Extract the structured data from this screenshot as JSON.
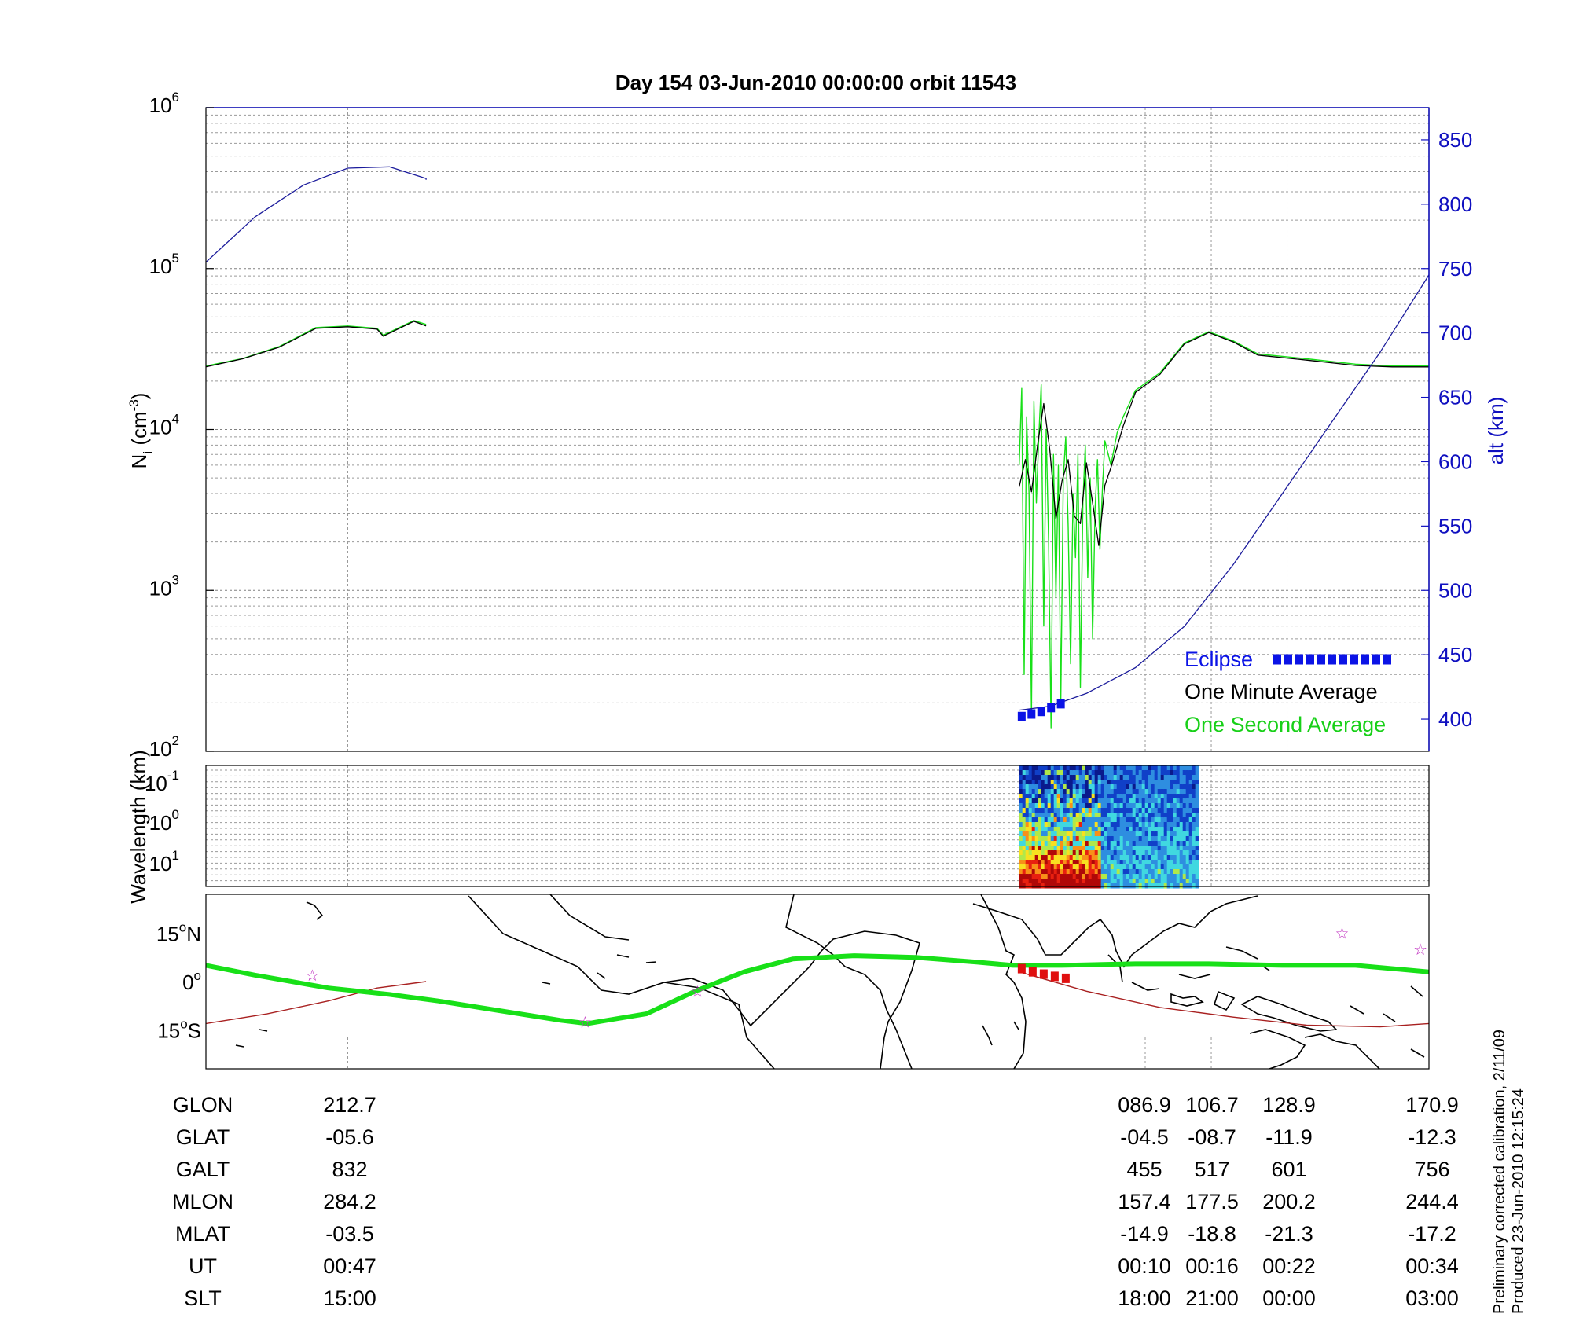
{
  "figure": {
    "title": "Day 154  03-Jun-2010 00:00:00   orbit 11543",
    "footnote_1": "Preliminary corrected calibration, 2/11/09",
    "footnote_2": "Produced 23-Jun-2010 12:15:24"
  },
  "chart_data": [
    {
      "id": "density",
      "type": "line",
      "title": "",
      "ylabel_main": "N",
      "ylabel_sub": "i",
      "ylabel_units_pre": " (cm",
      "ylabel_units_sup": "-3",
      "ylabel_units_post": ")",
      "y_scale": "log",
      "ylim": [
        100,
        1000000
      ],
      "y_ticks": [
        {
          "base": "10",
          "exp": "2",
          "value": 100
        },
        {
          "base": "10",
          "exp": "3",
          "value": 1000
        },
        {
          "base": "10",
          "exp": "4",
          "value": 10000
        },
        {
          "base": "10",
          "exp": "5",
          "value": 100000
        },
        {
          "base": "10",
          "exp": "6",
          "value": 1000000
        }
      ],
      "y2label": "alt (km)",
      "y2lim": [
        375,
        875
      ],
      "y2_ticks": [
        "400",
        "450",
        "500",
        "550",
        "600",
        "650",
        "700",
        "750",
        "800",
        "850"
      ],
      "xlim": [
        0,
        1
      ],
      "x_grid": [
        0.116,
        0.768,
        0.822,
        0.884,
        1.0
      ],
      "grid": true,
      "colors": {
        "altitude": "#1c1c9c",
        "minute": "#000000",
        "second": "#18e018",
        "eclipse": "#0b13e6",
        "axis_right": "#1010c0"
      },
      "series": [
        {
          "id": "altitude",
          "axis": "right",
          "segments": [
            [
              [
                0.0,
                755
              ],
              [
                0.04,
                790
              ],
              [
                0.08,
                815
              ],
              [
                0.116,
                828
              ],
              [
                0.15,
                829
              ],
              [
                0.18,
                820
              ],
              [
                0.18,
                819
              ]
            ],
            [
              [
                0.665,
                407
              ],
              [
                0.69,
                410
              ],
              [
                0.72,
                420
              ],
              [
                0.76,
                440
              ],
              [
                0.8,
                472
              ],
              [
                0.84,
                520
              ],
              [
                0.88,
                575
              ],
              [
                0.92,
                630
              ],
              [
                0.96,
                685
              ],
              [
                1.0,
                745
              ]
            ]
          ]
        },
        {
          "id": "minute_avg",
          "axis": "left",
          "segments": [
            [
              [
                0.0,
                24500
              ],
              [
                0.03,
                27500
              ],
              [
                0.06,
                32500
              ],
              [
                0.09,
                42500
              ],
              [
                0.116,
                43500
              ],
              [
                0.14,
                42000
              ],
              [
                0.145,
                38000
              ],
              [
                0.17,
                47000
              ],
              [
                0.18,
                44000
              ]
            ],
            [
              [
                0.665,
                4400
              ],
              [
                0.67,
                6500
              ],
              [
                0.675,
                4100
              ],
              [
                0.68,
                8000
              ],
              [
                0.685,
                14500
              ],
              [
                0.69,
                7500
              ],
              [
                0.695,
                2800
              ],
              [
                0.7,
                4800
              ],
              [
                0.705,
                6500
              ],
              [
                0.71,
                2900
              ],
              [
                0.715,
                2600
              ],
              [
                0.72,
                6200
              ],
              [
                0.725,
                3500
              ],
              [
                0.73,
                1900
              ],
              [
                0.735,
                4500
              ],
              [
                0.74,
                5800
              ],
              [
                0.75,
                10500
              ],
              [
                0.76,
                17000
              ],
              [
                0.78,
                22000
              ],
              [
                0.8,
                34000
              ],
              [
                0.82,
                40000
              ],
              [
                0.84,
                35000
              ],
              [
                0.86,
                29000
              ],
              [
                0.9,
                27000
              ],
              [
                0.94,
                25000
              ],
              [
                0.97,
                24500
              ],
              [
                1.0,
                24500
              ]
            ]
          ]
        },
        {
          "id": "second_avg",
          "axis": "left",
          "segments": [
            [
              [
                0.0,
                24800
              ],
              [
                0.03,
                27600
              ],
              [
                0.06,
                32800
              ],
              [
                0.09,
                43000
              ],
              [
                0.116,
                44000
              ],
              [
                0.14,
                42500
              ],
              [
                0.145,
                38500
              ],
              [
                0.17,
                47500
              ],
              [
                0.18,
                45000
              ]
            ],
            [
              [
                0.665,
                6000
              ],
              [
                0.667,
                18000
              ],
              [
                0.669,
                300
              ],
              [
                0.671,
                12000
              ],
              [
                0.673,
                4000
              ],
              [
                0.675,
                170
              ],
              [
                0.677,
                15000
              ],
              [
                0.679,
                3500
              ],
              [
                0.681,
                9000
              ],
              [
                0.683,
                19000
              ],
              [
                0.685,
                600
              ],
              [
                0.687,
                10000
              ],
              [
                0.689,
                2000
              ],
              [
                0.691,
                140
              ],
              [
                0.693,
                7000
              ],
              [
                0.695,
                900
              ],
              [
                0.697,
                6000
              ],
              [
                0.699,
                200
              ],
              [
                0.701,
                5000
              ],
              [
                0.703,
                9000
              ],
              [
                0.705,
                2500
              ],
              [
                0.707,
                350
              ],
              [
                0.709,
                4000
              ],
              [
                0.711,
                1600
              ],
              [
                0.713,
                7000
              ],
              [
                0.715,
                250
              ],
              [
                0.717,
                3500
              ],
              [
                0.719,
                8000
              ],
              [
                0.721,
                1200
              ],
              [
                0.723,
                5000
              ],
              [
                0.725,
                500
              ],
              [
                0.727,
                3200
              ],
              [
                0.729,
                6500
              ],
              [
                0.731,
                1800
              ],
              [
                0.733,
                4200
              ],
              [
                0.735,
                8500
              ],
              [
                0.74,
                6000
              ],
              [
                0.745,
                9500
              ],
              [
                0.75,
                12000
              ],
              [
                0.76,
                17500
              ],
              [
                0.78,
                22500
              ],
              [
                0.8,
                34500
              ],
              [
                0.82,
                40500
              ],
              [
                0.84,
                35500
              ],
              [
                0.86,
                29500
              ],
              [
                0.9,
                27500
              ],
              [
                0.94,
                25500
              ],
              [
                0.97,
                24800
              ],
              [
                1.0,
                24800
              ]
            ]
          ]
        },
        {
          "id": "eclipse",
          "axis": "right",
          "points": [
            [
              0.667,
              402
            ],
            [
              0.675,
              404
            ],
            [
              0.683,
              406
            ],
            [
              0.691,
              409
            ],
            [
              0.699,
              412
            ]
          ]
        }
      ],
      "legend": {
        "placement": "bottom-right",
        "entries": [
          {
            "label": "Eclipse",
            "color": "#0b13e6"
          },
          {
            "label": "One Minute Average",
            "color": "#000000"
          },
          {
            "label": "One Second Average",
            "color": "#18e018"
          }
        ]
      }
    },
    {
      "id": "spectrogram",
      "type": "heatmap",
      "ylabel": "Wavelength (km)",
      "y_ticks": [
        {
          "base": "10",
          "exp": "-1"
        },
        {
          "base": "10",
          "exp": "0"
        },
        {
          "base": "10",
          "exp": "1"
        }
      ],
      "x_range": [
        0.665,
        0.81
      ],
      "colorscale": [
        "#0a1a8c",
        "#1040c8",
        "#2e8ee0",
        "#40d8e0",
        "#b0e84a",
        "#f8e020",
        "#f89018",
        "#e82010",
        "#b00808"
      ]
    },
    {
      "id": "track_map",
      "type": "line",
      "y_ticks": [
        {
          "value": "15",
          "hemi": "N",
          "lat": 15
        },
        {
          "value": "0",
          "hemi": "",
          "lat": 0
        },
        {
          "value": "15",
          "hemi": "S",
          "lat": -15
        }
      ],
      "ylim": [
        -27,
        27
      ],
      "colors": {
        "track": "#18e018",
        "magnetic_equator": "#a82020",
        "eclipse": "#e01010",
        "star": "#c030c0"
      },
      "track": [
        [
          0.0,
          5
        ],
        [
          0.04,
          2
        ],
        [
          0.1,
          -2
        ],
        [
          0.15,
          -4
        ],
        [
          0.19,
          -6
        ],
        [
          0.24,
          -9
        ],
        [
          0.29,
          -12
        ],
        [
          0.312,
          -13
        ],
        [
          0.36,
          -10
        ],
        [
          0.4,
          -3
        ],
        [
          0.44,
          3
        ],
        [
          0.48,
          7
        ],
        [
          0.53,
          8
        ],
        [
          0.58,
          7.5
        ],
        [
          0.63,
          6
        ],
        [
          0.66,
          5
        ],
        [
          0.7,
          5
        ],
        [
          0.76,
          5.5
        ],
        [
          0.82,
          5.5
        ],
        [
          0.88,
          5
        ],
        [
          0.94,
          5
        ],
        [
          1.0,
          3
        ]
      ],
      "magnetic_equator": [
        [
          0.0,
          -13
        ],
        [
          0.05,
          -10
        ],
        [
          0.1,
          -6
        ],
        [
          0.14,
          -2
        ],
        [
          0.18,
          0
        ]
      ],
      "magnetic_equator_b": [
        [
          0.665,
          3
        ],
        [
          0.72,
          -3
        ],
        [
          0.78,
          -8
        ],
        [
          0.84,
          -11
        ],
        [
          0.9,
          -13.5
        ],
        [
          0.96,
          -14
        ],
        [
          1.0,
          -13
        ]
      ],
      "eclipse": [
        [
          0.667,
          4
        ],
        [
          0.676,
          3
        ],
        [
          0.685,
          2.3
        ],
        [
          0.694,
          1.6
        ],
        [
          0.703,
          1
        ]
      ],
      "stars": [
        [
          0.087,
          2
        ],
        [
          0.31,
          -12.5
        ],
        [
          0.402,
          -3
        ],
        [
          0.929,
          15
        ],
        [
          0.993,
          10
        ]
      ]
    }
  ],
  "table": {
    "row_labels": [
      "GLON",
      "GLAT",
      "GALT",
      "MLON",
      "MLAT",
      "UT",
      "SLT"
    ],
    "columns": [
      {
        "values": [
          "212.7",
          "-05.6",
          "832",
          "284.2",
          "-03.5",
          "00:47",
          "15:00"
        ]
      },
      {
        "values": [
          "086.9",
          "-04.5",
          "455",
          "157.4",
          "-14.9",
          "00:10",
          "18:00"
        ]
      },
      {
        "values": [
          "106.7",
          "-08.7",
          "517",
          "177.5",
          "-18.8",
          "00:16",
          "21:00"
        ]
      },
      {
        "values": [
          "128.9",
          "-11.9",
          "601",
          "200.2",
          "-21.3",
          "00:22",
          "00:00"
        ]
      },
      {
        "values": [
          "170.9",
          "-12.3",
          "756",
          "244.4",
          "-17.2",
          "00:34",
          "03:00"
        ]
      }
    ]
  }
}
